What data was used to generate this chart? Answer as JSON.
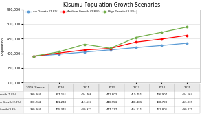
{
  "title": "Kisumu Population Growth Scenarios",
  "years": [
    2009,
    2010,
    2011,
    2012,
    2013,
    2014,
    2015
  ],
  "year_labels": [
    "2009 (Census)",
    "2010",
    "2011",
    "2012",
    "2013",
    "2014",
    "2015"
  ],
  "low_growth": [
    390264,
    397151,
    404466,
    411802,
    419751,
    426907,
    434664
  ],
  "medium_growth": [
    390264,
    401243,
    411637,
    416954,
    438481,
    448793,
    461339
  ],
  "high_growth": [
    390264,
    405376,
    430972,
    417277,
    454211,
    471806,
    490079
  ],
  "low_label": "Low Growth (1.8%)",
  "medium_label": "Medium Growth (2.8%)",
  "high_label": "High Growth (3.8%)",
  "low_color": "#5B9BD5",
  "medium_color": "#FF0000",
  "high_color": "#70AD47",
  "ylim_min": 300000,
  "ylim_max": 550000,
  "yticks": [
    300000,
    350000,
    400000,
    450000,
    500000,
    550000
  ],
  "ylabel": "Population",
  "bg_color": "#FFFFFF",
  "plot_bg": "#FFFFFF",
  "grid_color": "#D9D9D9",
  "table_row_labels": [
    "Low Growth (1.8%)",
    "Medium Growth (2.8%)",
    "High Growth (3.8%)"
  ]
}
